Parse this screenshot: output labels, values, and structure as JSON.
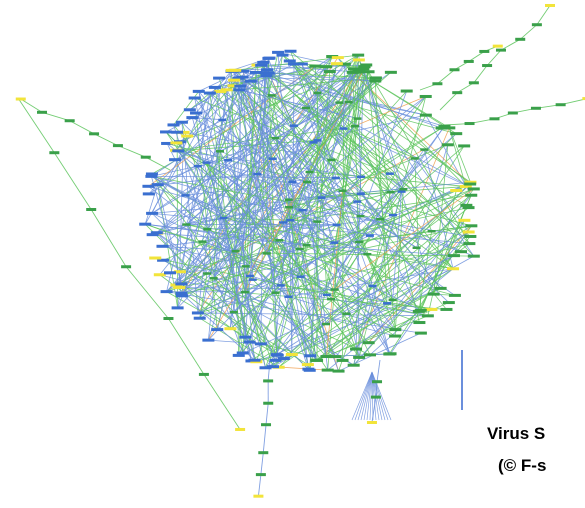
{
  "caption": {
    "line1": "Virus S",
    "line2": "(© F-s"
  }
}
